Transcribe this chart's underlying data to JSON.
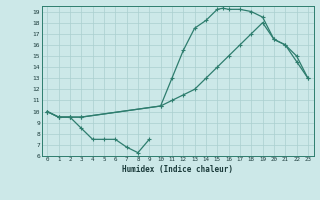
{
  "xlabel": "Humidex (Indice chaleur)",
  "ylabel": "",
  "bg_color": "#cce8e8",
  "line_color": "#2e7d6e",
  "grid_color": "#aacfcf",
  "xlim": [
    -0.5,
    23.5
  ],
  "ylim": [
    6,
    19.5
  ],
  "xticks": [
    0,
    1,
    2,
    3,
    4,
    5,
    6,
    7,
    8,
    9,
    10,
    11,
    12,
    13,
    14,
    15,
    16,
    17,
    18,
    19,
    20,
    21,
    22,
    23
  ],
  "yticks": [
    6,
    7,
    8,
    9,
    10,
    11,
    12,
    13,
    14,
    15,
    16,
    17,
    18,
    19
  ],
  "line1_x": [
    0,
    1,
    2,
    3,
    10,
    11,
    12,
    13,
    14,
    15,
    15.5,
    16,
    17,
    18,
    19,
    20,
    21,
    22,
    23
  ],
  "line1_y": [
    10,
    9.5,
    9.5,
    9.5,
    10.5,
    13,
    15.5,
    17.5,
    18.2,
    19.2,
    19.3,
    19.2,
    19.2,
    19.0,
    18.5,
    16.5,
    16.0,
    14.5,
    13.0
  ],
  "line2_x": [
    0,
    1,
    2,
    3,
    10,
    11,
    12,
    13,
    14,
    15,
    16,
    17,
    18,
    19,
    20,
    21,
    22,
    23
  ],
  "line2_y": [
    10,
    9.5,
    9.5,
    9.5,
    10.5,
    11.0,
    11.5,
    12.0,
    13.0,
    14.0,
    15.0,
    16.0,
    17.0,
    18.0,
    16.5,
    16.0,
    15.0,
    13.0
  ],
  "line3_x": [
    0,
    1,
    2,
    3,
    4,
    5,
    6,
    7,
    8,
    9
  ],
  "line3_y": [
    10,
    9.5,
    9.5,
    8.5,
    7.5,
    7.5,
    7.5,
    6.8,
    6.3,
    7.5
  ]
}
